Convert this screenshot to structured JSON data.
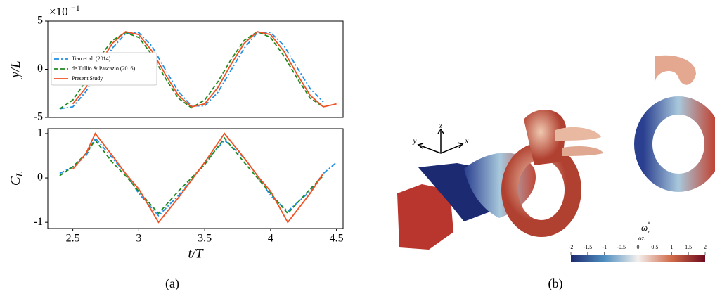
{
  "chart_data": [
    {
      "type": "line",
      "ylabel": "y/L",
      "offset_text": "×10",
      "offset_exponent": "−1",
      "x": [
        2.4,
        2.5,
        2.6,
        2.7,
        2.8,
        2.9,
        3.0,
        3.1,
        3.2,
        3.3,
        3.4,
        3.5,
        3.6,
        3.7,
        3.8,
        3.9,
        4.0,
        4.1,
        4.2,
        4.3,
        4.4,
        4.5
      ],
      "xlim": [
        2.31,
        4.55
      ],
      "ylim": [
        -5,
        5
      ],
      "yticks": [
        -5,
        0,
        5
      ],
      "legend": "left",
      "series": [
        {
          "name": "Tian et al. (2014)",
          "color": "#1f8fe6",
          "style": "dashdot",
          "values": [
            -4.1,
            -3.9,
            -2.3,
            0.0,
            2.2,
            3.7,
            3.8,
            2.4,
            0.0,
            -2.3,
            -3.8,
            -3.8,
            -2.4,
            -0.1,
            2.2,
            3.8,
            3.8,
            2.5,
            0.2,
            -2.0,
            -3.4,
            null
          ]
        },
        {
          "name": "de Tullio & Pascazio (2016)",
          "color": "#1e8a1e",
          "style": "dashed",
          "values": [
            -4.1,
            -3.2,
            -1.2,
            1.2,
            3.0,
            3.8,
            3.3,
            1.5,
            -0.9,
            -3.0,
            -4.0,
            -3.2,
            -1.3,
            1.0,
            3.0,
            3.9,
            3.3,
            1.4,
            -0.9,
            -3.0,
            -3.9,
            null
          ]
        },
        {
          "name": "Present Study",
          "color": "#f05022",
          "style": "solid",
          "values": [
            null,
            -3.6,
            -1.9,
            0.5,
            2.7,
            3.9,
            3.6,
            1.9,
            -0.5,
            -2.7,
            -3.9,
            -3.6,
            -1.9,
            0.5,
            2.7,
            3.9,
            3.6,
            1.9,
            -0.5,
            -2.7,
            -3.9,
            -3.6
          ]
        }
      ]
    },
    {
      "type": "line",
      "ylabel": "C",
      "ylabel_sub": "L",
      "xlabel": "t/T",
      "x": [
        2.4,
        2.5,
        2.6,
        2.67,
        2.8,
        2.9,
        3.0,
        3.15,
        3.3,
        3.4,
        3.5,
        3.65,
        3.8,
        3.9,
        4.0,
        4.13,
        4.3,
        4.4,
        4.5
      ],
      "xlim": [
        2.31,
        4.55
      ],
      "ylim": [
        -1.14,
        1.11
      ],
      "xticks": [
        2.5,
        3.0,
        3.5,
        4.0,
        4.5
      ],
      "yticks": [
        -1,
        0,
        1
      ],
      "series": [
        {
          "name": "Tian et al. (2014)",
          "color": "#1f8fe6",
          "style": "dashdot",
          "values": [
            0.1,
            0.25,
            0.5,
            0.9,
            0.45,
            0.1,
            -0.35,
            -0.85,
            -0.4,
            -0.05,
            0.35,
            0.85,
            0.45,
            0.05,
            -0.4,
            -0.75,
            -0.3,
            0.1,
            0.35
          ]
        },
        {
          "name": "de Tullio & Pascazio (2016)",
          "color": "#1e8a1e",
          "style": "dashed",
          "values": [
            0.05,
            0.25,
            0.55,
            0.85,
            0.35,
            0.05,
            -0.3,
            -0.8,
            -0.3,
            0.0,
            0.3,
            0.9,
            0.35,
            0.0,
            -0.35,
            -0.8,
            -0.25,
            0.05,
            null
          ]
        },
        {
          "name": "Present Study",
          "color": "#f05022",
          "style": "solid",
          "values": [
            null,
            0.2,
            0.55,
            1.0,
            0.5,
            0.1,
            -0.25,
            -1.0,
            -0.45,
            -0.05,
            0.35,
            1.0,
            0.45,
            0.05,
            -0.3,
            -1.0,
            -0.35,
            0.1,
            null
          ]
        }
      ]
    }
  ],
  "render": {
    "axes": {
      "x": "x",
      "y": "y",
      "z": "z"
    },
    "colorbar": {
      "title": "ω",
      "sub": "z",
      "sup": "*",
      "note": "oz",
      "lim": [
        -2,
        2
      ],
      "ticks": [
        -2,
        -1.5,
        -1,
        -0.5,
        0,
        0.5,
        1,
        1.5,
        2
      ]
    }
  },
  "figure": {
    "caption_a": "(a)",
    "caption_b": "(b)"
  }
}
